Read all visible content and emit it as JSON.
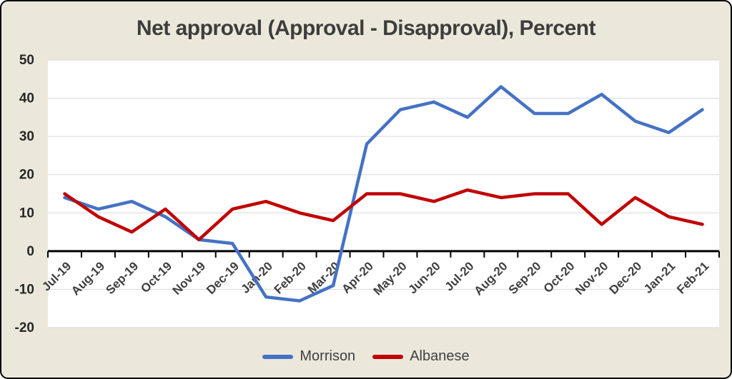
{
  "title": "Net approval (Approval - Disapproval), Percent",
  "chart_data": {
    "type": "line",
    "title": "Net approval (Approval - Disapproval), Percent",
    "categories": [
      "Jul-19",
      "Aug-19",
      "Sep-19",
      "Oct-19",
      "Nov-19",
      "Dec-19",
      "Jan-20",
      "Feb-20",
      "Mar-20",
      "Apr-20",
      "May-20",
      "Jun-20",
      "Jul-20",
      "Aug-20",
      "Sep-20",
      "Oct-20",
      "Nov-20",
      "Dec-20",
      "Jan-21",
      "Feb-21"
    ],
    "series": [
      {
        "name": "Morrison",
        "color": "#4472C4",
        "values": [
          14,
          11,
          13,
          9,
          3,
          2,
          -12,
          -13,
          -9,
          28,
          37,
          39,
          35,
          43,
          36,
          36,
          41,
          34,
          31,
          37
        ]
      },
      {
        "name": "Albanese",
        "color": "#C00000",
        "values": [
          15,
          9,
          5,
          11,
          3,
          11,
          13,
          10,
          8,
          15,
          15,
          13,
          16,
          14,
          15,
          15,
          7,
          14,
          9,
          7
        ]
      }
    ],
    "ylim": [
      -20,
      50
    ],
    "ytick_step": 10,
    "grid": true,
    "legend_position": "bottom"
  },
  "colors": {
    "background": "#EBE8DB",
    "plot_background": "#FFFFFF",
    "gridline": "#D9D9D9",
    "axis": "#000000",
    "text": "#3D3D3D"
  }
}
